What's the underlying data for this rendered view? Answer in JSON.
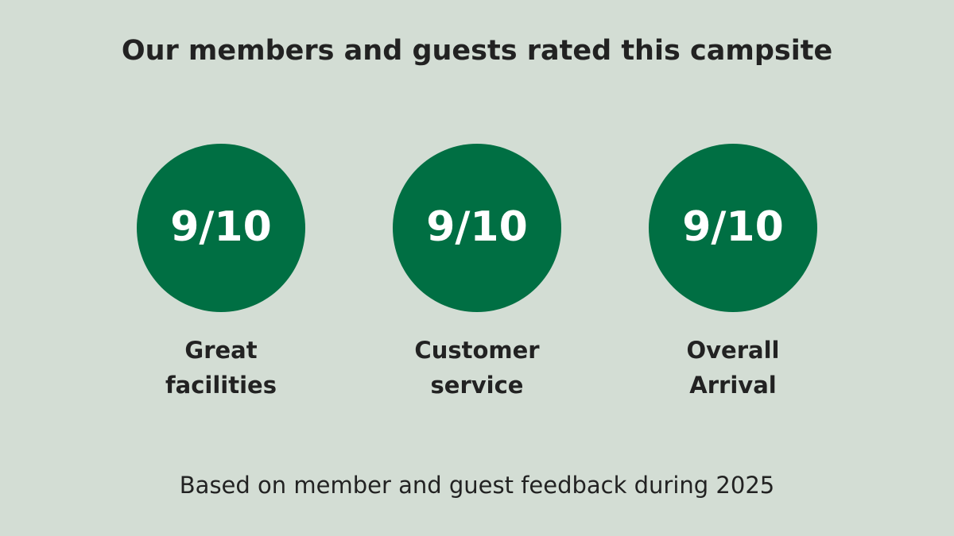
{
  "header": {
    "title": "Our members and guests rated this campsite"
  },
  "ratings": [
    {
      "score": "9/10",
      "label": [
        "Great",
        "facilities"
      ]
    },
    {
      "score": "9/10",
      "label": [
        "Customer",
        "service"
      ]
    },
    {
      "score": "9/10",
      "label": [
        "Overall",
        "Arrival"
      ]
    }
  ],
  "footer": {
    "note": "Based on member and guest feedback during 2025"
  }
}
